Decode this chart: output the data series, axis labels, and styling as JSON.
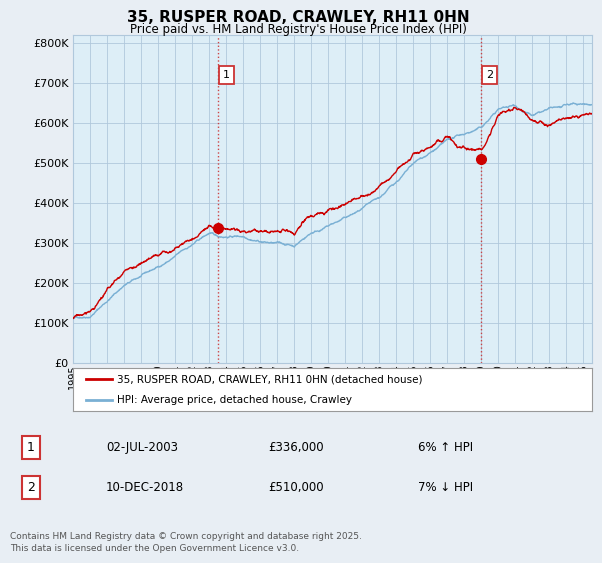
{
  "title": "35, RUSPER ROAD, CRAWLEY, RH11 0HN",
  "subtitle": "Price paid vs. HM Land Registry's House Price Index (HPI)",
  "ylabel_vals": [
    0,
    100000,
    200000,
    300000,
    400000,
    500000,
    600000,
    700000,
    800000
  ],
  "ylim": [
    0,
    820000
  ],
  "xlim_start": 1995.0,
  "xlim_end": 2025.5,
  "x_ticks": [
    1995,
    1996,
    1997,
    1998,
    1999,
    2000,
    2001,
    2002,
    2003,
    2004,
    2005,
    2006,
    2007,
    2008,
    2009,
    2010,
    2011,
    2012,
    2013,
    2014,
    2015,
    2016,
    2017,
    2018,
    2019,
    2020,
    2021,
    2022,
    2023,
    2024,
    2025
  ],
  "red_color": "#cc0000",
  "blue_color": "#7ab0d4",
  "blue_fill": "#ddeef7",
  "marker1_x": 2003.5,
  "marker1_y": 336000,
  "marker2_x": 2018.95,
  "marker2_y": 510000,
  "vline1_x": 2003.5,
  "vline2_x": 2018.95,
  "legend1": "35, RUSPER ROAD, CRAWLEY, RH11 0HN (detached house)",
  "legend2": "HPI: Average price, detached house, Crawley",
  "table_rows": [
    {
      "num": "1",
      "date": "02-JUL-2003",
      "price": "£336,000",
      "hpi": "6% ↑ HPI"
    },
    {
      "num": "2",
      "date": "10-DEC-2018",
      "price": "£510,000",
      "hpi": "7% ↓ HPI"
    }
  ],
  "footnote": "Contains HM Land Registry data © Crown copyright and database right 2025.\nThis data is licensed under the Open Government Licence v3.0.",
  "background_color": "#e8eef4",
  "plot_bg_color": "#ddeef7",
  "grid_color": "#b0c8dc"
}
